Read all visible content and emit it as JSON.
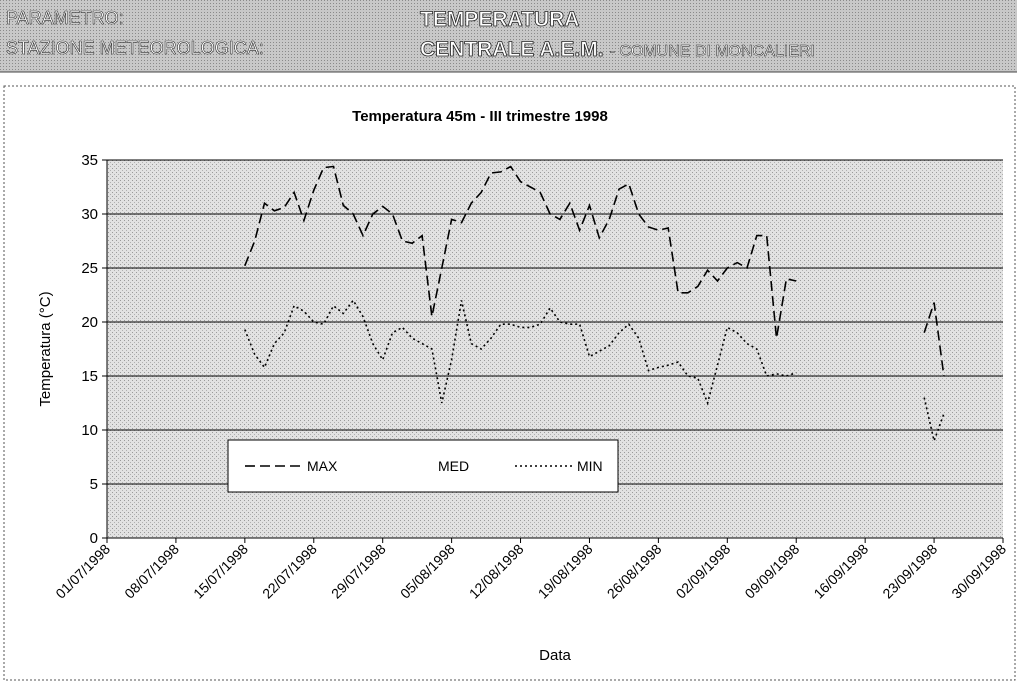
{
  "header": {
    "label1": "PARAMETRO:",
    "value1": "TEMPERATURA",
    "label2": "STAZIONE METEOROLOGICA:",
    "value2": "CENTRALE A.E.M.",
    "value2_suffix": "- COMUNE DI MONCALIERI"
  },
  "chart_data": {
    "type": "line",
    "title": "Temperatura 45m  - III trimestre 1998",
    "x_label": "Data",
    "y_label": "Temperatura (°C)",
    "xlim": [
      "01/07/1998",
      "30/09/1998"
    ],
    "xticks": [
      "01/07/1998",
      "08/07/1998",
      "15/07/1998",
      "22/07/1998",
      "29/07/1998",
      "05/08/1998",
      "12/08/1998",
      "19/08/1998",
      "26/08/1998",
      "02/09/1998",
      "09/09/1998",
      "16/09/1998",
      "23/09/1998",
      "30/09/1998"
    ],
    "ylim": [
      0,
      35
    ],
    "yticks": [
      0,
      5,
      10,
      15,
      20,
      25,
      30,
      35
    ],
    "grid": true,
    "x": [
      "15/07/1998",
      "16/07/1998",
      "17/07/1998",
      "18/07/1998",
      "19/07/1998",
      "20/07/1998",
      "21/07/1998",
      "22/07/1998",
      "23/07/1998",
      "24/07/1998",
      "25/07/1998",
      "26/07/1998",
      "27/07/1998",
      "28/07/1998",
      "29/07/1998",
      "30/07/1998",
      "31/07/1998",
      "01/08/1998",
      "02/08/1998",
      "03/08/1998",
      "04/08/1998",
      "05/08/1998",
      "06/08/1998",
      "07/08/1998",
      "08/08/1998",
      "09/08/1998",
      "10/08/1998",
      "11/08/1998",
      "12/08/1998",
      "13/08/1998",
      "14/08/1998",
      "15/08/1998",
      "16/08/1998",
      "17/08/1998",
      "18/08/1998",
      "19/08/1998",
      "20/08/1998",
      "21/08/1998",
      "22/08/1998",
      "23/08/1998",
      "24/08/1998",
      "25/08/1998",
      "26/08/1998",
      "27/08/1998",
      "28/08/1998",
      "29/08/1998",
      "30/08/1998",
      "31/08/1998",
      "01/09/1998",
      "02/09/1998",
      "03/09/1998",
      "04/09/1998",
      "05/09/1998",
      "06/09/1998",
      "07/09/1998",
      "08/09/1998",
      "09/09/1998",
      "10/09/1998",
      "11/09/1998",
      "12/09/1998",
      "13/09/1998",
      "14/09/1998",
      "15/09/1998",
      "16/09/1998",
      "17/09/1998",
      "18/09/1998",
      "19/09/1998",
      "20/09/1998",
      "21/09/1998",
      "22/09/1998",
      "23/09/1998",
      "24/09/1998"
    ],
    "series": [
      {
        "name": "MAX",
        "color": "#000000",
        "dash": "10 5",
        "values": [
          25.2,
          27.5,
          31.0,
          30.3,
          30.6,
          32.0,
          29.4,
          32.2,
          34.3,
          34.4,
          30.8,
          30.0,
          28.0,
          30.0,
          30.7,
          30.0,
          27.5,
          27.3,
          28.0,
          20.5,
          25.0,
          29.5,
          29.2,
          31.0,
          32.0,
          33.8,
          33.9,
          34.4,
          33.0,
          32.5,
          32.0,
          30.0,
          29.5,
          31.0,
          28.5,
          30.8,
          27.8,
          29.5,
          32.3,
          32.8,
          30.0,
          28.8,
          28.5,
          28.7,
          22.7,
          22.7,
          23.3,
          24.8,
          23.8,
          25.0,
          25.5,
          25.0,
          28.0,
          28.0,
          18.5,
          24.0,
          23.8,
          null,
          null,
          null,
          null,
          null,
          null,
          null,
          null,
          null,
          null,
          null,
          null,
          19.0,
          21.8,
          15.0
        ]
      },
      {
        "name": "MED",
        "color": "#ffffff",
        "dash": "",
        "values": [
          null,
          null,
          null,
          null,
          null,
          null,
          null,
          null,
          null,
          null,
          null,
          null,
          null,
          null,
          null,
          null,
          null,
          null,
          null,
          null,
          null,
          null,
          null,
          null,
          null,
          null,
          null,
          null,
          null,
          null,
          null,
          null,
          null,
          null,
          null,
          null,
          null,
          null,
          null,
          null,
          null,
          null,
          null,
          null,
          null,
          null,
          null,
          null,
          null,
          null,
          null,
          null,
          null,
          null,
          null,
          null,
          null,
          null,
          null,
          null,
          null,
          null,
          null,
          null,
          null,
          null,
          null,
          null,
          null,
          null,
          null,
          null
        ]
      },
      {
        "name": "MIN",
        "color": "#000000",
        "dash": "2 3",
        "values": [
          19.3,
          17.0,
          15.8,
          18.0,
          19.0,
          21.5,
          21.0,
          20.0,
          19.8,
          21.5,
          20.8,
          22.0,
          20.5,
          18.0,
          16.5,
          19.0,
          19.5,
          18.5,
          18.0,
          17.5,
          12.5,
          16.5,
          22.0,
          18.0,
          17.5,
          18.5,
          19.8,
          19.8,
          19.5,
          19.5,
          19.8,
          21.3,
          20.0,
          19.8,
          19.8,
          16.8,
          17.3,
          17.8,
          19.0,
          19.8,
          18.5,
          15.5,
          15.8,
          16.0,
          16.3,
          15.0,
          14.8,
          12.5,
          16.0,
          19.5,
          19.0,
          18.0,
          17.5,
          15.0,
          15.2,
          15.0,
          15.3,
          null,
          null,
          null,
          null,
          null,
          null,
          null,
          null,
          null,
          null,
          null,
          null,
          13.0,
          9.0,
          11.5
        ]
      }
    ]
  }
}
